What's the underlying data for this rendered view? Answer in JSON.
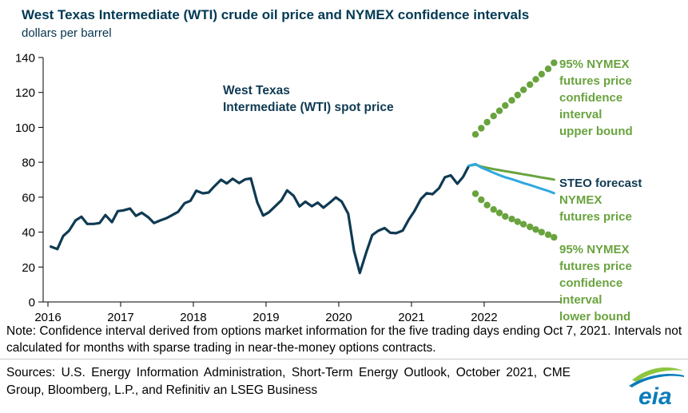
{
  "header": {
    "title": "West Texas Intermediate (WTI) crude oil price and NYMEX confidence intervals",
    "subtitle": "dollars per barrel"
  },
  "annotations": {
    "spot": "West Texas\nIntermediate (WTI) spot price",
    "upper_bound": "95% NYMEX\nfutures price\nconfidence\ninterval\nupper bound",
    "steo_forecast": "STEO forecast",
    "nymex_futures": "NYMEX\nfutures price",
    "lower_bound": "95% NYMEX\nfutures price\nconfidence\ninterval\nlower bound"
  },
  "footer": {
    "note": "Note: Confidence interval derived from options market information for the five trading days ending Oct 7, 2021. Intervals not calculated for months with sparse trading in near-the-money options contracts.",
    "sources": "Sources: U.S. Energy Information Administration, Short-Term Energy Outlook, October 2021, CME Group, Bloomberg, L.P., and Refinitiv an LSEG Business",
    "logo_text": "eia"
  },
  "colors": {
    "title_navy": "#003953",
    "spot_navy": "#0f3a52",
    "forecast_blue": "#2fa8e0",
    "green": "#69a33e",
    "logo_blue": "#0c7cba",
    "logo_green": "#8cc63f"
  },
  "chart_data": {
    "type": "line",
    "title": "West Texas Intermediate (WTI) crude oil price and NYMEX confidence intervals",
    "ylabel": "dollars per barrel",
    "xlabel": "",
    "grid": false,
    "legend_position": "right-annotations",
    "ylim": [
      0,
      140
    ],
    "xlim": [
      2015.934,
      2023.045
    ],
    "yticks": [
      0,
      20,
      40,
      60,
      80,
      100,
      120,
      140
    ],
    "xticks": [
      2016,
      2017,
      2018,
      2019,
      2020,
      2021,
      2022
    ],
    "series": [
      {
        "name": "West Texas Intermediate (WTI) spot price",
        "type": "line",
        "color": "#0f3a52",
        "width": 3.2,
        "points": [
          [
            2016.04,
            31.7
          ],
          [
            2016.13,
            30.3
          ],
          [
            2016.21,
            37.8
          ],
          [
            2016.29,
            40.8
          ],
          [
            2016.38,
            46.7
          ],
          [
            2016.46,
            48.8
          ],
          [
            2016.54,
            44.7
          ],
          [
            2016.63,
            44.7
          ],
          [
            2016.71,
            45.2
          ],
          [
            2016.79,
            49.8
          ],
          [
            2016.88,
            45.7
          ],
          [
            2016.96,
            52.0
          ],
          [
            2017.04,
            52.5
          ],
          [
            2017.13,
            53.5
          ],
          [
            2017.21,
            49.3
          ],
          [
            2017.29,
            51.1
          ],
          [
            2017.38,
            48.5
          ],
          [
            2017.46,
            45.2
          ],
          [
            2017.54,
            46.6
          ],
          [
            2017.63,
            48.0
          ],
          [
            2017.71,
            49.8
          ],
          [
            2017.79,
            51.6
          ],
          [
            2017.88,
            56.6
          ],
          [
            2017.96,
            57.9
          ],
          [
            2018.04,
            63.7
          ],
          [
            2018.13,
            62.2
          ],
          [
            2018.21,
            62.7
          ],
          [
            2018.29,
            66.3
          ],
          [
            2018.38,
            70.0
          ],
          [
            2018.46,
            67.9
          ],
          [
            2018.54,
            70.6
          ],
          [
            2018.63,
            68.1
          ],
          [
            2018.71,
            70.2
          ],
          [
            2018.79,
            70.8
          ],
          [
            2018.88,
            57.0
          ],
          [
            2018.96,
            49.5
          ],
          [
            2019.04,
            51.4
          ],
          [
            2019.13,
            55.0
          ],
          [
            2019.21,
            58.2
          ],
          [
            2019.29,
            63.9
          ],
          [
            2019.38,
            60.8
          ],
          [
            2019.46,
            54.7
          ],
          [
            2019.54,
            57.4
          ],
          [
            2019.63,
            54.8
          ],
          [
            2019.71,
            56.9
          ],
          [
            2019.79,
            54.0
          ],
          [
            2019.88,
            57.0
          ],
          [
            2019.96,
            59.9
          ],
          [
            2020.04,
            57.5
          ],
          [
            2020.13,
            50.5
          ],
          [
            2020.21,
            29.2
          ],
          [
            2020.29,
            16.6
          ],
          [
            2020.38,
            28.6
          ],
          [
            2020.46,
            38.3
          ],
          [
            2020.54,
            40.7
          ],
          [
            2020.63,
            42.3
          ],
          [
            2020.71,
            39.6
          ],
          [
            2020.79,
            39.4
          ],
          [
            2020.88,
            40.9
          ],
          [
            2020.96,
            47.0
          ],
          [
            2021.04,
            52.0
          ],
          [
            2021.13,
            59.0
          ],
          [
            2021.21,
            62.3
          ],
          [
            2021.29,
            61.7
          ],
          [
            2021.38,
            65.2
          ],
          [
            2021.46,
            71.4
          ],
          [
            2021.54,
            72.5
          ],
          [
            2021.63,
            67.7
          ],
          [
            2021.71,
            71.6
          ],
          [
            2021.79,
            78.0
          ]
        ]
      },
      {
        "name": "NYMEX futures price",
        "type": "line",
        "color": "#69a33e",
        "width": 3,
        "points": [
          [
            2021.79,
            78.0
          ],
          [
            2021.88,
            78.6
          ],
          [
            2021.96,
            77.6
          ],
          [
            2022.04,
            76.8
          ],
          [
            2022.13,
            76.1
          ],
          [
            2022.21,
            75.5
          ],
          [
            2022.29,
            74.9
          ],
          [
            2022.38,
            74.3
          ],
          [
            2022.46,
            73.7
          ],
          [
            2022.54,
            73.1
          ],
          [
            2022.63,
            72.5
          ],
          [
            2022.71,
            71.9
          ],
          [
            2022.79,
            71.3
          ],
          [
            2022.88,
            70.7
          ],
          [
            2022.96,
            70.1
          ]
        ]
      },
      {
        "name": "STEO forecast",
        "type": "line",
        "color": "#2fa8e0",
        "width": 3,
        "points": [
          [
            2021.79,
            78.0
          ],
          [
            2021.88,
            79.0
          ],
          [
            2021.96,
            77.0
          ],
          [
            2022.04,
            75.6
          ],
          [
            2022.13,
            74.0
          ],
          [
            2022.21,
            72.6
          ],
          [
            2022.29,
            71.4
          ],
          [
            2022.38,
            70.3
          ],
          [
            2022.46,
            69.2
          ],
          [
            2022.54,
            68.1
          ],
          [
            2022.63,
            67.0
          ],
          [
            2022.71,
            65.9
          ],
          [
            2022.79,
            64.8
          ],
          [
            2022.88,
            63.6
          ],
          [
            2022.96,
            62.3
          ]
        ]
      },
      {
        "name": "95% NYMEX futures price confidence interval upper bound",
        "type": "dots",
        "color": "#69a33e",
        "r": 4.2,
        "points": [
          [
            2021.88,
            96.0
          ],
          [
            2021.96,
            99.5
          ],
          [
            2022.04,
            103.0
          ],
          [
            2022.13,
            106.5
          ],
          [
            2022.21,
            109.5
          ],
          [
            2022.29,
            112.5
          ],
          [
            2022.38,
            115.5
          ],
          [
            2022.46,
            118.5
          ],
          [
            2022.54,
            121.5
          ],
          [
            2022.63,
            124.5
          ],
          [
            2022.71,
            127.5
          ],
          [
            2022.79,
            130.5
          ],
          [
            2022.88,
            133.5
          ],
          [
            2022.96,
            137.0
          ]
        ]
      },
      {
        "name": "95% NYMEX futures price confidence interval lower bound",
        "type": "dots",
        "color": "#69a33e",
        "r": 4.2,
        "points": [
          [
            2021.88,
            62.0
          ],
          [
            2021.96,
            58.5
          ],
          [
            2022.04,
            55.5
          ],
          [
            2022.13,
            53.0
          ],
          [
            2022.21,
            51.0
          ],
          [
            2022.29,
            49.0
          ],
          [
            2022.38,
            47.5
          ],
          [
            2022.46,
            46.0
          ],
          [
            2022.54,
            44.5
          ],
          [
            2022.63,
            43.0
          ],
          [
            2022.71,
            41.5
          ],
          [
            2022.79,
            40.0
          ],
          [
            2022.88,
            38.5
          ],
          [
            2022.96,
            37.0
          ]
        ]
      }
    ]
  }
}
